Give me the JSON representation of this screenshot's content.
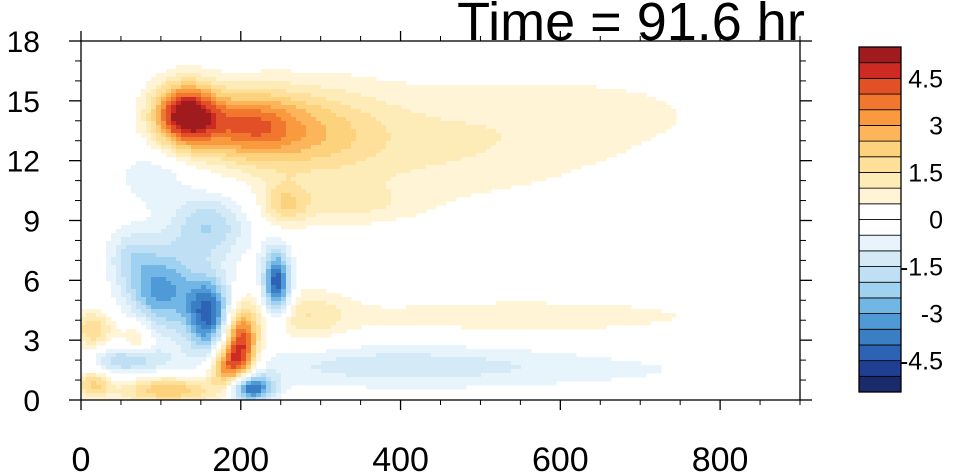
{
  "chart_data": {
    "type": "heatmap",
    "title": "Time = 91.6 hr",
    "xlabel": "",
    "ylabel": "",
    "xlim": [
      0,
      900
    ],
    "ylim": [
      0,
      18
    ],
    "x_ticks": [
      0,
      200,
      400,
      600,
      800
    ],
    "y_ticks": [
      0,
      3,
      6,
      9,
      12,
      15,
      18
    ],
    "colorbar": {
      "levels": [
        -5.5,
        -5,
        -4.5,
        -4,
        -3.5,
        -3,
        -2.5,
        -2,
        -1.5,
        -1,
        -0.5,
        0,
        0.5,
        1,
        1.5,
        2,
        2.5,
        3,
        3.5,
        4,
        4.5,
        5,
        5.5
      ],
      "labels": [
        "4.5",
        "3",
        "1.5",
        "0",
        "-1.5",
        "-3",
        "-4.5"
      ],
      "label_values": [
        4.5,
        3,
        1.5,
        0,
        -1.5,
        -3,
        -4.5
      ],
      "colors": [
        "#1b2a6b",
        "#1f3f93",
        "#2d62b5",
        "#3a7fc4",
        "#4f9ad6",
        "#72b6e6",
        "#9fd1f0",
        "#bfe0f4",
        "#d4ebf7",
        "#e8f4fb",
        "#ffffff",
        "#ffffff",
        "#fff5d6",
        "#feecb8",
        "#fee09a",
        "#fdd27c",
        "#fdb55c",
        "#f99a3f",
        "#f0772d",
        "#e25028",
        "#cd2a24",
        "#a01b1e"
      ]
    },
    "features": [
      {
        "x": 130,
        "y": 14.3,
        "sx": 28,
        "sy": 1.1,
        "value": 5.2
      },
      {
        "x": 205,
        "y": 13.8,
        "sx": 45,
        "sy": 1.2,
        "value": 3.0
      },
      {
        "x": 285,
        "y": 13.5,
        "sx": 65,
        "sy": 1.6,
        "value": 1.7
      },
      {
        "x": 420,
        "y": 12.5,
        "sx": 150,
        "sy": 2.0,
        "value": 0.9
      },
      {
        "x": 650,
        "y": 14.5,
        "sx": 200,
        "sy": 2.0,
        "value": 0.5
      },
      {
        "x": 330,
        "y": 9.8,
        "sx": 60,
        "sy": 0.7,
        "value": 0.9
      },
      {
        "x": 200,
        "y": 2.7,
        "sx": 15,
        "sy": 1.3,
        "value": 4.7
      },
      {
        "x": 180,
        "y": 1.6,
        "sx": 15,
        "sy": 0.8,
        "value": 3.0
      },
      {
        "x": 110,
        "y": 0.5,
        "sx": 45,
        "sy": 0.5,
        "value": 2.5
      },
      {
        "x": 15,
        "y": 0.8,
        "sx": 15,
        "sy": 0.5,
        "value": 2.0
      },
      {
        "x": 15,
        "y": 3.5,
        "sx": 18,
        "sy": 0.7,
        "value": 2.0
      },
      {
        "x": 70,
        "y": 3.0,
        "sx": 15,
        "sy": 0.8,
        "value": 1.5
      },
      {
        "x": 280,
        "y": 4.2,
        "sx": 40,
        "sy": 1.0,
        "value": 1.2
      },
      {
        "x": 550,
        "y": 4.2,
        "sx": 200,
        "sy": 0.7,
        "value": 0.8
      },
      {
        "x": 255,
        "y": 9.8,
        "sx": 20,
        "sy": 0.8,
        "value": 1.5
      },
      {
        "x": 100,
        "y": 5.5,
        "sx": 30,
        "sy": 1.5,
        "value": -3.2
      },
      {
        "x": 160,
        "y": 4.3,
        "sx": 20,
        "sy": 1.3,
        "value": -4.2
      },
      {
        "x": 210,
        "y": 0.6,
        "sx": 20,
        "sy": 0.5,
        "value": -4.8
      },
      {
        "x": 245,
        "y": 5.8,
        "sx": 12,
        "sy": 1.2,
        "value": -4.5
      },
      {
        "x": 60,
        "y": 2.0,
        "sx": 30,
        "sy": 0.5,
        "value": -2.2
      },
      {
        "x": 160,
        "y": 8.7,
        "sx": 35,
        "sy": 1.2,
        "value": -2.0
      },
      {
        "x": 380,
        "y": 1.8,
        "sx": 150,
        "sy": 0.8,
        "value": -1.0
      },
      {
        "x": 600,
        "y": 1.5,
        "sx": 250,
        "sy": 0.7,
        "value": -0.5
      },
      {
        "x": 90,
        "y": 11.2,
        "sx": 30,
        "sy": 1.0,
        "value": -1.0
      },
      {
        "x": 60,
        "y": 7.2,
        "sx": 20,
        "sy": 1.0,
        "value": -1.2
      },
      {
        "x": 560,
        "y": 6.1,
        "sx": 120,
        "sy": 0.4,
        "value": -0.5
      }
    ]
  }
}
